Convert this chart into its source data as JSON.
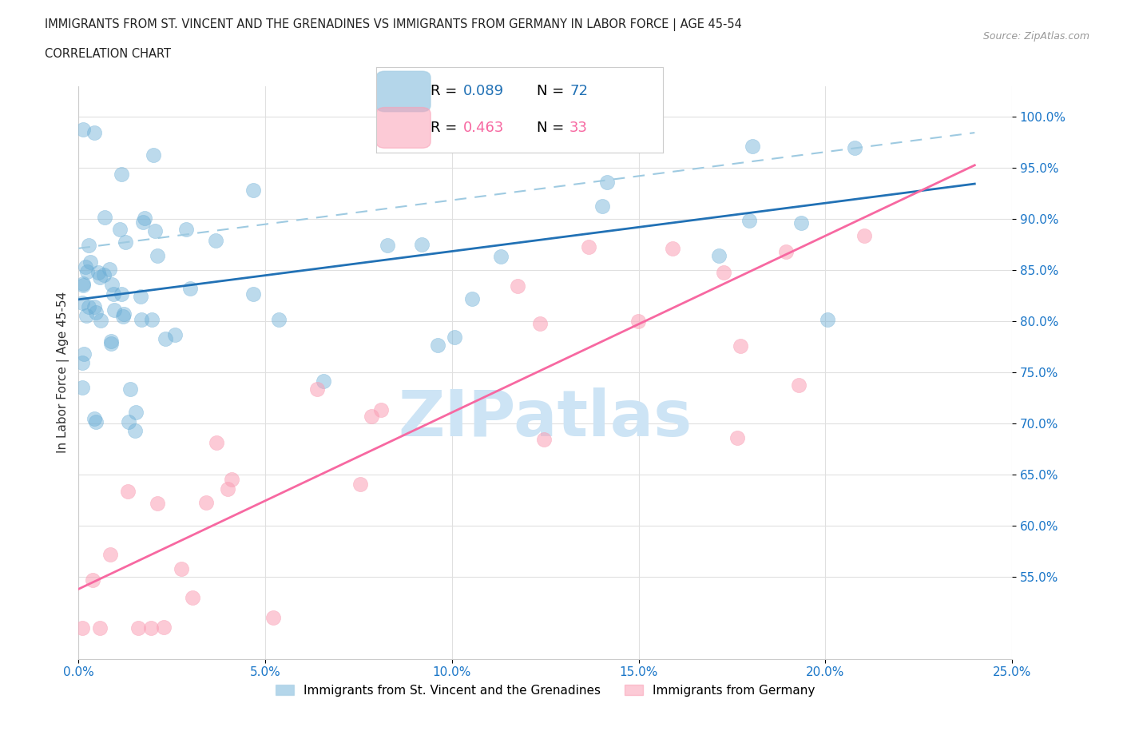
{
  "title_line1": "IMMIGRANTS FROM ST. VINCENT AND THE GRENADINES VS IMMIGRANTS FROM GERMANY IN LABOR FORCE | AGE 45-54",
  "title_line2": "CORRELATION CHART",
  "source_text": "Source: ZipAtlas.com",
  "ylabel": "In Labor Force | Age 45-54",
  "watermark": "ZIPatlas",
  "legend_label1": "Immigrants from St. Vincent and the Grenadines",
  "legend_label2": "Immigrants from Germany",
  "legend_R1": "0.089",
  "legend_N1": "72",
  "legend_R2": "0.463",
  "legend_N2": "33",
  "xlim": [
    0.0,
    0.25
  ],
  "ylim": [
    0.47,
    1.03
  ],
  "ytick_vals": [
    0.55,
    0.6,
    0.65,
    0.7,
    0.75,
    0.8,
    0.85,
    0.9,
    0.95,
    1.0
  ],
  "ytick_labels": [
    "55.0%",
    "60.0%",
    "65.0%",
    "70.0%",
    "75.0%",
    "80.0%",
    "85.0%",
    "90.0%",
    "95.0%",
    "100.0%"
  ],
  "xtick_vals": [
    0.0,
    0.05,
    0.1,
    0.15,
    0.2,
    0.25
  ],
  "xtick_labels": [
    "0.0%",
    "5.0%",
    "10.0%",
    "15.0%",
    "20.0%",
    "25.0%"
  ],
  "blue_color": "#6baed6",
  "pink_color": "#fa9fb5",
  "blue_line_color": "#2171b5",
  "pink_line_color": "#f768a1",
  "blue_dashed_color": "#9ecae1",
  "axis_color": "#1a76c8",
  "grid_color": "#e0e0e0",
  "watermark_color": "#cde4f5"
}
